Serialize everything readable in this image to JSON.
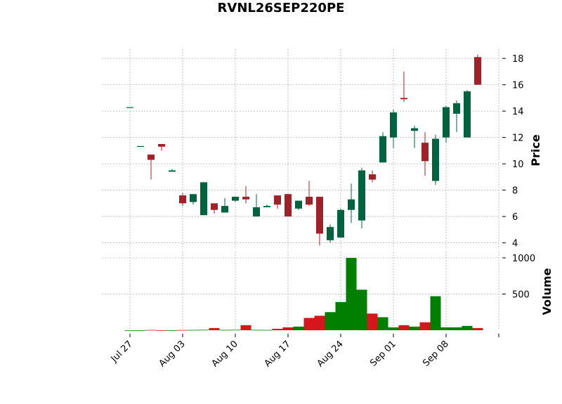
{
  "chart_data": {
    "type": "candlestick",
    "title": "RVNL26SEP220PE",
    "ylabel": "Price",
    "volume_label": "Volume",
    "up_color": "#006340",
    "down_color": "#A02128",
    "volume_up_color": "#007f00",
    "volume_down_color": "#d5161d",
    "price_ylim": [
      3.5,
      18.7
    ],
    "price_ticks": [
      "4",
      "6",
      "8",
      "10",
      "12",
      "14",
      "16",
      "18"
    ],
    "price_tick_values": [
      4,
      6,
      8,
      10,
      12,
      14,
      16,
      18
    ],
    "volume_ylim": [
      0,
      1000
    ],
    "volume_ticks": [
      "500",
      "1000"
    ],
    "volume_tick_values": [
      500,
      1000
    ],
    "x_ticks": [
      "Jul 27",
      "Aug 03",
      "Aug 10",
      "Aug 17",
      "Aug 24",
      "Sep 01",
      "Sep 08"
    ],
    "x_tick_indices": [
      0,
      5,
      10,
      15,
      20,
      25,
      30
    ],
    "grid": true,
    "candles": [
      {
        "o": 14.3,
        "h": 14.3,
        "l": 14.3,
        "c": 14.3,
        "v": 0
      },
      {
        "o": 11.35,
        "h": 11.35,
        "l": 11.35,
        "c": 11.35,
        "v": 0
      },
      {
        "o": 10.7,
        "h": 10.7,
        "l": 8.8,
        "c": 10.3,
        "v": 4
      },
      {
        "o": 11.5,
        "h": 11.5,
        "l": 11.0,
        "c": 11.3,
        "v": 0
      },
      {
        "o": 9.4,
        "h": 9.6,
        "l": 9.4,
        "c": 9.5,
        "v": 0
      },
      {
        "o": 7.6,
        "h": 7.8,
        "l": 6.8,
        "c": 7.0,
        "v": 3
      },
      {
        "o": 7.1,
        "h": 7.7,
        "l": 6.9,
        "c": 7.7,
        "v": 4
      },
      {
        "o": 6.1,
        "h": 8.6,
        "l": 6.1,
        "c": 8.6,
        "v": 6
      },
      {
        "o": 7.0,
        "h": 7.0,
        "l": 6.2,
        "c": 6.5,
        "v": 30
      },
      {
        "o": 6.3,
        "h": 7.4,
        "l": 6.3,
        "c": 6.8,
        "v": 4
      },
      {
        "o": 7.2,
        "h": 7.5,
        "l": 7.1,
        "c": 7.5,
        "v": 6
      },
      {
        "o": 7.5,
        "h": 8.3,
        "l": 7.0,
        "c": 7.3,
        "v": 70
      },
      {
        "o": 6.0,
        "h": 7.7,
        "l": 6.0,
        "c": 6.7,
        "v": 5
      },
      {
        "o": 6.7,
        "h": 6.9,
        "l": 6.7,
        "c": 6.8,
        "v": 4
      },
      {
        "o": 7.6,
        "h": 7.6,
        "l": 6.6,
        "c": 6.9,
        "v": 20
      },
      {
        "o": 7.7,
        "h": 7.7,
        "l": 6.0,
        "c": 6.0,
        "v": 40
      },
      {
        "o": 6.6,
        "h": 7.2,
        "l": 6.5,
        "c": 7.2,
        "v": 50
      },
      {
        "o": 7.5,
        "h": 8.7,
        "l": 6.8,
        "c": 6.9,
        "v": 170
      },
      {
        "o": 7.5,
        "h": 7.5,
        "l": 3.8,
        "c": 4.7,
        "v": 200
      },
      {
        "o": 4.2,
        "h": 5.4,
        "l": 4.0,
        "c": 5.2,
        "v": 250
      },
      {
        "o": 4.4,
        "h": 6.6,
        "l": 4.4,
        "c": 6.5,
        "v": 390
      },
      {
        "o": 6.5,
        "h": 8.5,
        "l": 5.5,
        "c": 7.3,
        "v": 1000
      },
      {
        "o": 5.7,
        "h": 9.7,
        "l": 5.1,
        "c": 9.5,
        "v": 560
      },
      {
        "o": 9.2,
        "h": 9.5,
        "l": 8.6,
        "c": 8.8,
        "v": 230
      },
      {
        "o": 10.1,
        "h": 12.4,
        "l": 10.1,
        "c": 12.1,
        "v": 180
      },
      {
        "o": 12.0,
        "h": 14.1,
        "l": 11.2,
        "c": 13.9,
        "v": 40
      },
      {
        "o": 15.0,
        "h": 17.0,
        "l": 14.7,
        "c": 14.9,
        "v": 70
      },
      {
        "o": 12.5,
        "h": 12.9,
        "l": 11.2,
        "c": 12.7,
        "v": 50
      },
      {
        "o": 11.6,
        "h": 12.4,
        "l": 9.1,
        "c": 10.2,
        "v": 110
      },
      {
        "o": 8.7,
        "h": 12.2,
        "l": 8.4,
        "c": 11.9,
        "v": 470
      },
      {
        "o": 12.0,
        "h": 14.4,
        "l": 11.6,
        "c": 14.3,
        "v": 40
      },
      {
        "o": 13.8,
        "h": 14.8,
        "l": 12.4,
        "c": 14.6,
        "v": 40
      },
      {
        "o": 12.0,
        "h": 15.6,
        "l": 12.0,
        "c": 15.5,
        "v": 60
      },
      {
        "o": 18.1,
        "h": 18.3,
        "l": 16.0,
        "c": 16.0,
        "v": 30
      }
    ]
  }
}
